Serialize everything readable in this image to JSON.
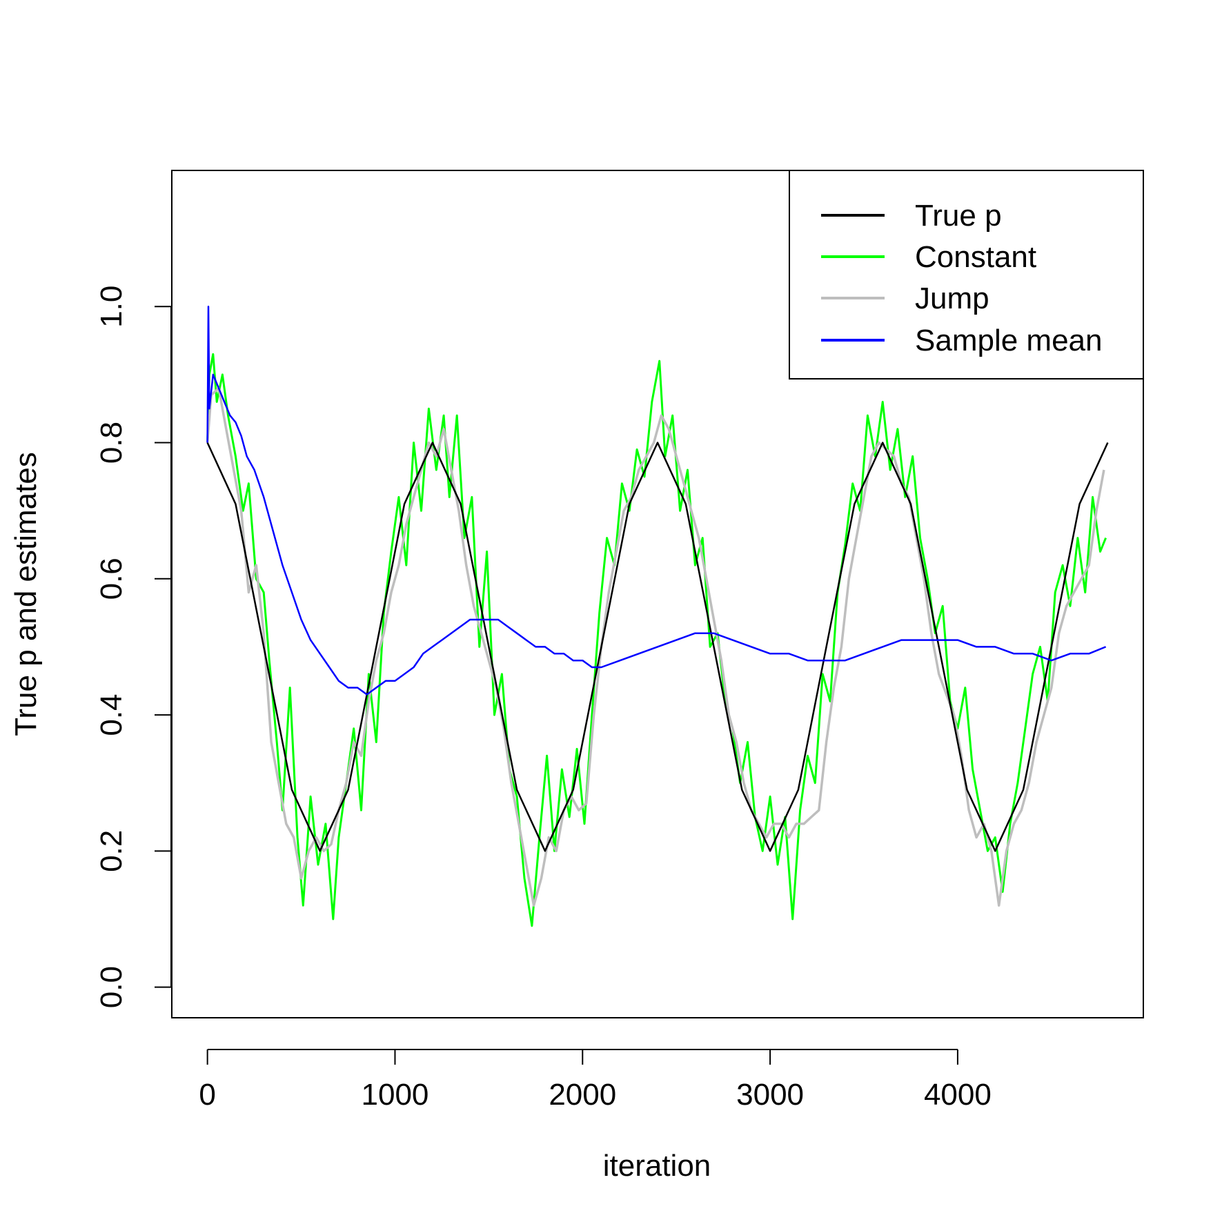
{
  "chart_data": {
    "type": "line",
    "xlabel": "iteration",
    "ylabel": "True p and estimates",
    "xlim": [
      -190,
      4990
    ],
    "ylim": [
      -0.045,
      1.2
    ],
    "x_ticks": [
      0,
      1000,
      2000,
      3000,
      4000
    ],
    "x_tick_labels": [
      "0",
      "1000",
      "2000",
      "3000",
      "4000"
    ],
    "y_ticks": [
      0.0,
      0.2,
      0.4,
      0.6,
      0.8,
      1.0
    ],
    "y_tick_labels": [
      "0.0",
      "0.2",
      "0.4",
      "0.6",
      "0.8",
      "1.0"
    ],
    "legend_position": "top-right",
    "grid": false,
    "series": [
      {
        "name": "True p",
        "color": "#000000",
        "x": [
          0,
          150,
          300,
          450,
          600,
          750,
          900,
          1050,
          1200,
          1350,
          1500,
          1650,
          1800,
          1950,
          2100,
          2250,
          2400,
          2550,
          2700,
          2850,
          3000,
          3150,
          3300,
          3450,
          3600,
          3750,
          3900,
          4050,
          4200,
          4350,
          4500,
          4650,
          4800
        ],
        "values": [
          0.8,
          0.71,
          0.5,
          0.29,
          0.2,
          0.29,
          0.5,
          0.71,
          0.8,
          0.71,
          0.5,
          0.29,
          0.2,
          0.29,
          0.5,
          0.71,
          0.8,
          0.71,
          0.5,
          0.29,
          0.2,
          0.29,
          0.5,
          0.71,
          0.8,
          0.71,
          0.5,
          0.29,
          0.2,
          0.29,
          0.5,
          0.71,
          0.8
        ]
      },
      {
        "name": "Constant",
        "color": "#00ff00",
        "x": [
          0,
          10,
          30,
          50,
          80,
          110,
          150,
          190,
          220,
          260,
          300,
          330,
          370,
          400,
          440,
          480,
          510,
          550,
          590,
          630,
          670,
          700,
          740,
          780,
          820,
          860,
          900,
          940,
          980,
          1020,
          1060,
          1100,
          1140,
          1180,
          1220,
          1260,
          1290,
          1330,
          1370,
          1410,
          1450,
          1490,
          1530,
          1570,
          1610,
          1650,
          1690,
          1730,
          1770,
          1810,
          1850,
          1890,
          1930,
          1970,
          2010,
          2050,
          2090,
          2130,
          2170,
          2210,
          2250,
          2290,
          2330,
          2370,
          2410,
          2440,
          2480,
          2520,
          2560,
          2600,
          2640,
          2680,
          2720,
          2760,
          2800,
          2840,
          2880,
          2920,
          2960,
          3000,
          3040,
          3080,
          3120,
          3160,
          3200,
          3240,
          3280,
          3320,
          3360,
          3400,
          3440,
          3480,
          3520,
          3560,
          3600,
          3640,
          3680,
          3720,
          3760,
          3800,
          3840,
          3880,
          3920,
          3960,
          4000,
          4040,
          4080,
          4120,
          4160,
          4200,
          4240,
          4280,
          4320,
          4360,
          4400,
          4440,
          4480,
          4520,
          4560,
          4600,
          4640,
          4680,
          4720,
          4760,
          4790
        ],
        "values": [
          0.8,
          0.9,
          0.93,
          0.86,
          0.9,
          0.84,
          0.78,
          0.7,
          0.74,
          0.6,
          0.58,
          0.48,
          0.36,
          0.26,
          0.44,
          0.22,
          0.12,
          0.28,
          0.18,
          0.24,
          0.1,
          0.22,
          0.3,
          0.38,
          0.26,
          0.46,
          0.36,
          0.55,
          0.64,
          0.72,
          0.62,
          0.8,
          0.7,
          0.85,
          0.76,
          0.84,
          0.72,
          0.84,
          0.66,
          0.72,
          0.5,
          0.64,
          0.4,
          0.46,
          0.32,
          0.28,
          0.16,
          0.09,
          0.22,
          0.34,
          0.2,
          0.32,
          0.25,
          0.35,
          0.24,
          0.4,
          0.55,
          0.66,
          0.62,
          0.74,
          0.7,
          0.79,
          0.75,
          0.86,
          0.92,
          0.78,
          0.84,
          0.7,
          0.76,
          0.62,
          0.66,
          0.5,
          0.52,
          0.42,
          0.38,
          0.3,
          0.36,
          0.25,
          0.2,
          0.28,
          0.18,
          0.25,
          0.1,
          0.26,
          0.34,
          0.3,
          0.46,
          0.42,
          0.58,
          0.65,
          0.74,
          0.7,
          0.84,
          0.78,
          0.86,
          0.76,
          0.82,
          0.72,
          0.78,
          0.66,
          0.6,
          0.52,
          0.56,
          0.42,
          0.38,
          0.44,
          0.32,
          0.26,
          0.2,
          0.22,
          0.14,
          0.24,
          0.3,
          0.38,
          0.46,
          0.5,
          0.42,
          0.58,
          0.62,
          0.56,
          0.66,
          0.58,
          0.72,
          0.64,
          0.66
        ]
      },
      {
        "name": "Jump",
        "color": "#bebebe",
        "x": [
          0,
          20,
          60,
          100,
          140,
          180,
          220,
          260,
          300,
          340,
          380,
          420,
          460,
          500,
          540,
          580,
          620,
          660,
          700,
          740,
          780,
          820,
          860,
          900,
          940,
          980,
          1020,
          1060,
          1100,
          1140,
          1180,
          1220,
          1260,
          1300,
          1340,
          1380,
          1420,
          1460,
          1500,
          1540,
          1580,
          1620,
          1660,
          1700,
          1740,
          1780,
          1820,
          1860,
          1900,
          1940,
          1980,
          2020,
          2060,
          2100,
          2140,
          2180,
          2220,
          2260,
          2300,
          2340,
          2380,
          2420,
          2460,
          2500,
          2540,
          2580,
          2620,
          2660,
          2700,
          2740,
          2780,
          2820,
          2860,
          2900,
          2940,
          2980,
          3020,
          3060,
          3100,
          3140,
          3180,
          3220,
          3260,
          3300,
          3340,
          3380,
          3420,
          3460,
          3500,
          3540,
          3580,
          3620,
          3660,
          3700,
          3740,
          3780,
          3820,
          3860,
          3900,
          3940,
          3980,
          4020,
          4060,
          4100,
          4140,
          4180,
          4220,
          4260,
          4300,
          4340,
          4380,
          4420,
          4460,
          4500,
          4540,
          4580,
          4620,
          4660,
          4700,
          4740,
          4780
        ],
        "values": [
          0.8,
          0.87,
          0.88,
          0.82,
          0.76,
          0.7,
          0.58,
          0.62,
          0.52,
          0.36,
          0.3,
          0.24,
          0.22,
          0.16,
          0.2,
          0.22,
          0.2,
          0.21,
          0.26,
          0.3,
          0.36,
          0.34,
          0.42,
          0.48,
          0.52,
          0.58,
          0.62,
          0.68,
          0.72,
          0.76,
          0.8,
          0.78,
          0.82,
          0.76,
          0.7,
          0.62,
          0.56,
          0.52,
          0.48,
          0.44,
          0.38,
          0.3,
          0.24,
          0.18,
          0.12,
          0.16,
          0.22,
          0.2,
          0.26,
          0.28,
          0.26,
          0.27,
          0.4,
          0.5,
          0.58,
          0.64,
          0.7,
          0.72,
          0.76,
          0.78,
          0.8,
          0.84,
          0.82,
          0.78,
          0.74,
          0.7,
          0.66,
          0.6,
          0.54,
          0.48,
          0.4,
          0.36,
          0.3,
          0.26,
          0.24,
          0.22,
          0.24,
          0.24,
          0.22,
          0.24,
          0.24,
          0.25,
          0.26,
          0.36,
          0.44,
          0.5,
          0.6,
          0.66,
          0.72,
          0.78,
          0.8,
          0.79,
          0.78,
          0.74,
          0.72,
          0.66,
          0.6,
          0.52,
          0.46,
          0.43,
          0.4,
          0.34,
          0.26,
          0.22,
          0.24,
          0.2,
          0.12,
          0.2,
          0.24,
          0.26,
          0.3,
          0.36,
          0.4,
          0.44,
          0.52,
          0.56,
          0.58,
          0.6,
          0.62,
          0.7,
          0.76
        ]
      },
      {
        "name": "Sample mean",
        "color": "#0000ff",
        "x": [
          0,
          5,
          10,
          30,
          60,
          90,
          120,
          150,
          180,
          210,
          250,
          300,
          350,
          400,
          450,
          500,
          550,
          600,
          650,
          700,
          750,
          800,
          850,
          900,
          950,
          1000,
          1050,
          1100,
          1150,
          1200,
          1250,
          1300,
          1350,
          1400,
          1450,
          1500,
          1550,
          1600,
          1650,
          1700,
          1750,
          1800,
          1850,
          1900,
          1950,
          2000,
          2050,
          2100,
          2200,
          2300,
          2400,
          2500,
          2600,
          2700,
          2800,
          2900,
          3000,
          3100,
          3200,
          3300,
          3400,
          3500,
          3600,
          3700,
          3800,
          3900,
          4000,
          4100,
          4200,
          4300,
          4400,
          4500,
          4600,
          4700,
          4790
        ],
        "values": [
          0.8,
          1.0,
          0.85,
          0.9,
          0.88,
          0.86,
          0.84,
          0.83,
          0.81,
          0.78,
          0.76,
          0.72,
          0.67,
          0.62,
          0.58,
          0.54,
          0.51,
          0.49,
          0.47,
          0.45,
          0.44,
          0.44,
          0.43,
          0.44,
          0.45,
          0.45,
          0.46,
          0.47,
          0.49,
          0.5,
          0.51,
          0.52,
          0.53,
          0.54,
          0.54,
          0.54,
          0.54,
          0.53,
          0.52,
          0.51,
          0.5,
          0.5,
          0.49,
          0.49,
          0.48,
          0.48,
          0.47,
          0.47,
          0.48,
          0.49,
          0.5,
          0.51,
          0.52,
          0.52,
          0.51,
          0.5,
          0.49,
          0.49,
          0.48,
          0.48,
          0.48,
          0.49,
          0.5,
          0.51,
          0.51,
          0.51,
          0.51,
          0.5,
          0.5,
          0.49,
          0.49,
          0.48,
          0.49,
          0.49,
          0.5
        ]
      }
    ]
  }
}
